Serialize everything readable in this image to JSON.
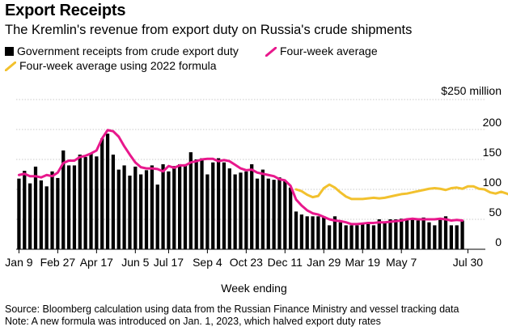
{
  "header": {
    "title": "Export Receipts",
    "subtitle": "The Kremlin's revenue from export duty on Russia's crude shipments"
  },
  "legend": {
    "bars": "Government receipts from crude export duty",
    "avg": "Four-week average",
    "avg2022": "Four-week average using 2022 formula"
  },
  "colors": {
    "bars": "#000000",
    "avg": "#e8188c",
    "avg2022": "#f2c12e",
    "grid": "#b8b8b8"
  },
  "footer": {
    "source": "Source: Bloomberg calculation using data from the Russian Finance Ministry and vessel tracking data",
    "note": "Note: A new formula was introduced on Jan. 1, 2023, which halved export duty rates"
  },
  "chart_data": {
    "type": "bar",
    "xlabel": "Week ending",
    "ylabel": "$ million",
    "ylim": [
      0,
      250
    ],
    "yticks": [
      0,
      50,
      100,
      150,
      200,
      250
    ],
    "ytick_labels": [
      "0",
      "50",
      "100",
      "150",
      "200",
      "$250 million"
    ],
    "x_tick_labels": [
      {
        "label": "Jan 9",
        "week": 0
      },
      {
        "label": "Feb 27",
        "week": 7
      },
      {
        "label": "Apr 17",
        "week": 14
      },
      {
        "label": "Jun 5",
        "week": 21
      },
      {
        "label": "Jul 17",
        "week": 27
      },
      {
        "label": "Sep 4",
        "week": 34
      },
      {
        "label": "Oct 23",
        "week": 41
      },
      {
        "label": "Dec 11",
        "week": 48
      },
      {
        "label": "Jan 29",
        "week": 55
      },
      {
        "label": "Mar 19",
        "week": 62
      },
      {
        "label": "May 7",
        "week": 69
      },
      {
        "label": "Jul 30",
        "week": 81
      }
    ],
    "series": [
      {
        "name": "Government receipts from crude export duty",
        "kind": "bar",
        "values": [
          118,
          131,
          110,
          138,
          115,
          105,
          130,
          119,
          165,
          140,
          140,
          158,
          154,
          160,
          155,
          185,
          193,
          158,
          133,
          140,
          123,
          138,
          125,
          132,
          140,
          108,
          142,
          130,
          139,
          142,
          142,
          162,
          150,
          152,
          125,
          145,
          152,
          145,
          135,
          125,
          128,
          130,
          142,
          118,
          133,
          118,
          116,
          120,
          115,
          103,
          63,
          58,
          55,
          55,
          55,
          55,
          40,
          55,
          45,
          40,
          40,
          40,
          42,
          43,
          40,
          50,
          45,
          50,
          50,
          51,
          50,
          50,
          48,
          53,
          45,
          40,
          50,
          55,
          40,
          40,
          48
        ]
      },
      {
        "name": "Four-week average",
        "kind": "line",
        "values": [
          124,
          126,
          122,
          122,
          120,
          124,
          122,
          128,
          144,
          148,
          148,
          154,
          156,
          160,
          165,
          185,
          199,
          197,
          188,
          172,
          158,
          145,
          137,
          135,
          135,
          134,
          130,
          139,
          136,
          140,
          140,
          145,
          147,
          150,
          151,
          151,
          147,
          149,
          147,
          141,
          135,
          132,
          133,
          128,
          126,
          124,
          122,
          117,
          115,
          106,
          83,
          73,
          65,
          60,
          58,
          54,
          50,
          48,
          47,
          45,
          42,
          42,
          43,
          44,
          44,
          45,
          45,
          46,
          47,
          48,
          50,
          51,
          50,
          50,
          50,
          50,
          51,
          50,
          48,
          49,
          48
        ]
      },
      {
        "name": "Four-week average using 2022 formula",
        "kind": "line",
        "start_week": 50,
        "values": [
          100,
          97,
          91,
          87,
          89,
          102,
          108,
          103,
          95,
          88,
          84,
          84,
          84,
          85,
          86,
          85,
          86,
          88,
          90,
          92,
          93,
          95,
          97,
          99,
          101,
          102,
          101,
          99,
          102,
          103,
          101,
          105,
          105,
          101,
          100,
          95,
          93,
          96,
          93,
          89,
          86
        ]
      }
    ]
  }
}
